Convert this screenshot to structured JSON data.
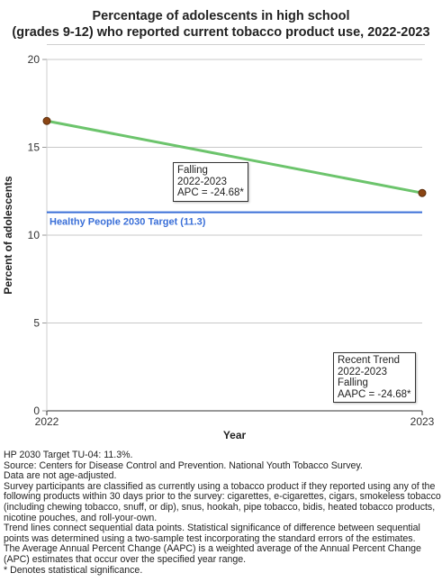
{
  "chart_data": {
    "type": "line",
    "title": "Percentage of adolescents in high school (grades 9-12) who reported current tobacco product use, 2022-2023",
    "title_lines": [
      "Percentage of adolescents in high school",
      "(grades 9-12) who reported current tobacco product use, 2022-2023"
    ],
    "xlabel": "Year",
    "ylabel": "Percent of adolescents",
    "x": [
      "2022",
      "2023"
    ],
    "ylim": [
      0,
      20
    ],
    "yticks": [
      0,
      5,
      10,
      15,
      20
    ],
    "grid": true,
    "series": [
      {
        "values": [
          16.5,
          12.4
        ],
        "color": "#6cc46c",
        "marker_color": "#8b4513"
      }
    ],
    "target": {
      "label": "Healthy People 2030 Target (11.3)",
      "value": 11.3,
      "color": "#3a6fd8"
    },
    "annotations": [
      {
        "id": "segment",
        "lines": [
          "Falling",
          "2022-2023",
          "APC = -24.68*"
        ]
      },
      {
        "id": "recent-trend",
        "lines": [
          "Recent Trend",
          "2022-2023",
          "Falling",
          "AAPC = -24.68*"
        ]
      }
    ]
  },
  "footnotes": [
    "HP 2030 Target TU-04: 11.3%.",
    "Source: Centers for Disease Control and Prevention. National Youth Tobacco Survey.",
    "Data are not age-adjusted.",
    "Survey participants are classified as currently using a tobacco product if they reported using any of the following products within 30 days prior to the survey: cigarettes, e-cigarettes, cigars, smokeless tobacco (including chewing tobacco, snuff, or dip), snus, hookah, pipe tobacco, bidis, heated tobacco products, nicotine pouches, and roll-your-own.",
    "Trend lines connect sequential data points. Statistical significance of difference between sequential points was determined using a two-sample test incorporating the standard errors of the estimates.",
    "The Average Annual Percent Change (AAPC) is a weighted average of the Annual Percent Change (APC) estimates that occur over the specified year range.",
    "* Denotes statistical significance."
  ]
}
